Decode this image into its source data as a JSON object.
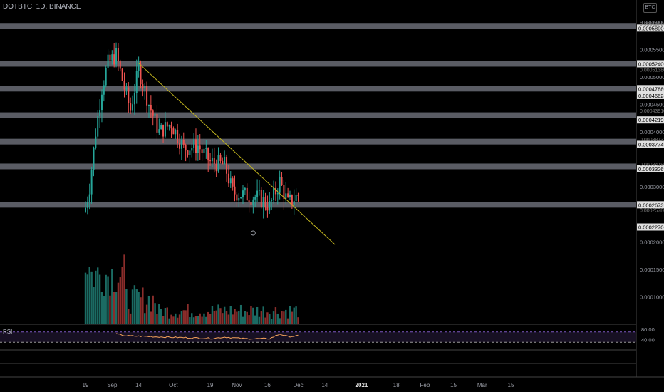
{
  "header": {
    "symbol": "DOTBTC",
    "interval": "1D",
    "exchange": "BINANCE"
  },
  "currency_badge": "BTC",
  "rsi_label": "RSI",
  "colors": {
    "up": "#26a69a",
    "down": "#ef5350",
    "vol_up": "#1b6b63",
    "vol_down": "#8b2d2b",
    "sr_band": "#787b86",
    "trendline": "#c2b51f",
    "rsi_line": "#f7a35c",
    "rsi_band": "#7e57c2",
    "background": "#000000"
  },
  "chart_data": {
    "type": "candlestick",
    "price_axis": {
      "ticks": [
        "0.00060000",
        "0.00055000",
        "0.00050000",
        "0.00045000",
        "0.00040000",
        "0.00030000",
        "0.00020000",
        "0.00015000",
        "0.00010000"
      ],
      "range": [
        5e-05,
        0.00064
      ]
    },
    "sr_levels": [
      "0.00058900",
      "0.00052400",
      "0.00047880",
      "0.00046628",
      "0.00042190",
      "0.00037749",
      "0.00033269",
      "0.00026739",
      "0.00022700"
    ],
    "hidden_levels": [
      "0.00059700",
      "0.00051380",
      "0.00043910",
      "0.00038732",
      "0.00034186",
      "0.00025780"
    ],
    "x_axis": {
      "ticks": [
        {
          "label": "19",
          "date": "2020-08-19"
        },
        {
          "label": "Sep",
          "date": "2020-09-01"
        },
        {
          "label": "14",
          "date": "2020-09-14"
        },
        {
          "label": "Oct",
          "date": "2020-10-01"
        },
        {
          "label": "19",
          "date": "2020-10-19"
        },
        {
          "label": "Nov",
          "date": "2020-11-01"
        },
        {
          "label": "16",
          "date": "2020-11-16"
        },
        {
          "label": "Dec",
          "date": "2020-12-01"
        },
        {
          "label": "14",
          "date": "2020-12-14"
        },
        {
          "label": "2021",
          "date": "2021-01-01"
        },
        {
          "label": "18",
          "date": "2021-01-18"
        },
        {
          "label": "Feb",
          "date": "2021-02-01"
        },
        {
          "label": "15",
          "date": "2021-02-15"
        },
        {
          "label": "Mar",
          "date": "2021-03-01"
        },
        {
          "label": "15",
          "date": "2021-03-15"
        }
      ]
    },
    "price_series_anchors": [
      {
        "date": "2020-08-19",
        "close": 0.000262
      },
      {
        "date": "2020-08-21",
        "close": 0.0003
      },
      {
        "date": "2020-08-24",
        "close": 0.0004
      },
      {
        "date": "2020-08-27",
        "close": 0.00048
      },
      {
        "date": "2020-08-30",
        "close": 0.000525
      },
      {
        "date": "2020-09-03",
        "close": 0.00054
      },
      {
        "date": "2020-09-07",
        "close": 0.00048
      },
      {
        "date": "2020-09-10",
        "close": 0.00044
      },
      {
        "date": "2020-09-14",
        "close": 0.000515
      },
      {
        "date": "2020-09-19",
        "close": 0.00045
      },
      {
        "date": "2020-09-24",
        "close": 0.0004
      },
      {
        "date": "2020-09-30",
        "close": 0.000415
      },
      {
        "date": "2020-10-06",
        "close": 0.00037
      },
      {
        "date": "2020-10-13",
        "close": 0.000375
      },
      {
        "date": "2020-10-19",
        "close": 0.000345
      },
      {
        "date": "2020-10-26",
        "close": 0.00034
      },
      {
        "date": "2020-10-30",
        "close": 0.00029
      },
      {
        "date": "2020-11-05",
        "close": 0.000285
      },
      {
        "date": "2020-11-12",
        "close": 0.00028
      },
      {
        "date": "2020-11-17",
        "close": 0.000265
      },
      {
        "date": "2020-11-22",
        "close": 0.00031
      },
      {
        "date": "2020-11-26",
        "close": 0.00027
      },
      {
        "date": "2020-12-01",
        "close": 0.000285
      }
    ],
    "trendline": {
      "start": {
        "date": "2020-09-14",
        "price": 0.000525
      },
      "end": {
        "date": "2020-12-19",
        "price": 0.000195
      }
    },
    "rsi": {
      "levels": [
        "80.00",
        "40.00"
      ],
      "band": [
        30,
        70
      ],
      "anchors": [
        {
          "date": "2020-09-03",
          "value": 62
        },
        {
          "date": "2020-09-08",
          "value": 55
        },
        {
          "date": "2020-09-20",
          "value": 52
        },
        {
          "date": "2020-10-06",
          "value": 48
        },
        {
          "date": "2020-10-20",
          "value": 45
        },
        {
          "date": "2020-10-26",
          "value": 50
        },
        {
          "date": "2020-11-05",
          "value": 44
        },
        {
          "date": "2020-11-17",
          "value": 44
        },
        {
          "date": "2020-11-22",
          "value": 62
        },
        {
          "date": "2020-11-26",
          "value": 52
        },
        {
          "date": "2020-12-01",
          "value": 55
        }
      ]
    }
  }
}
